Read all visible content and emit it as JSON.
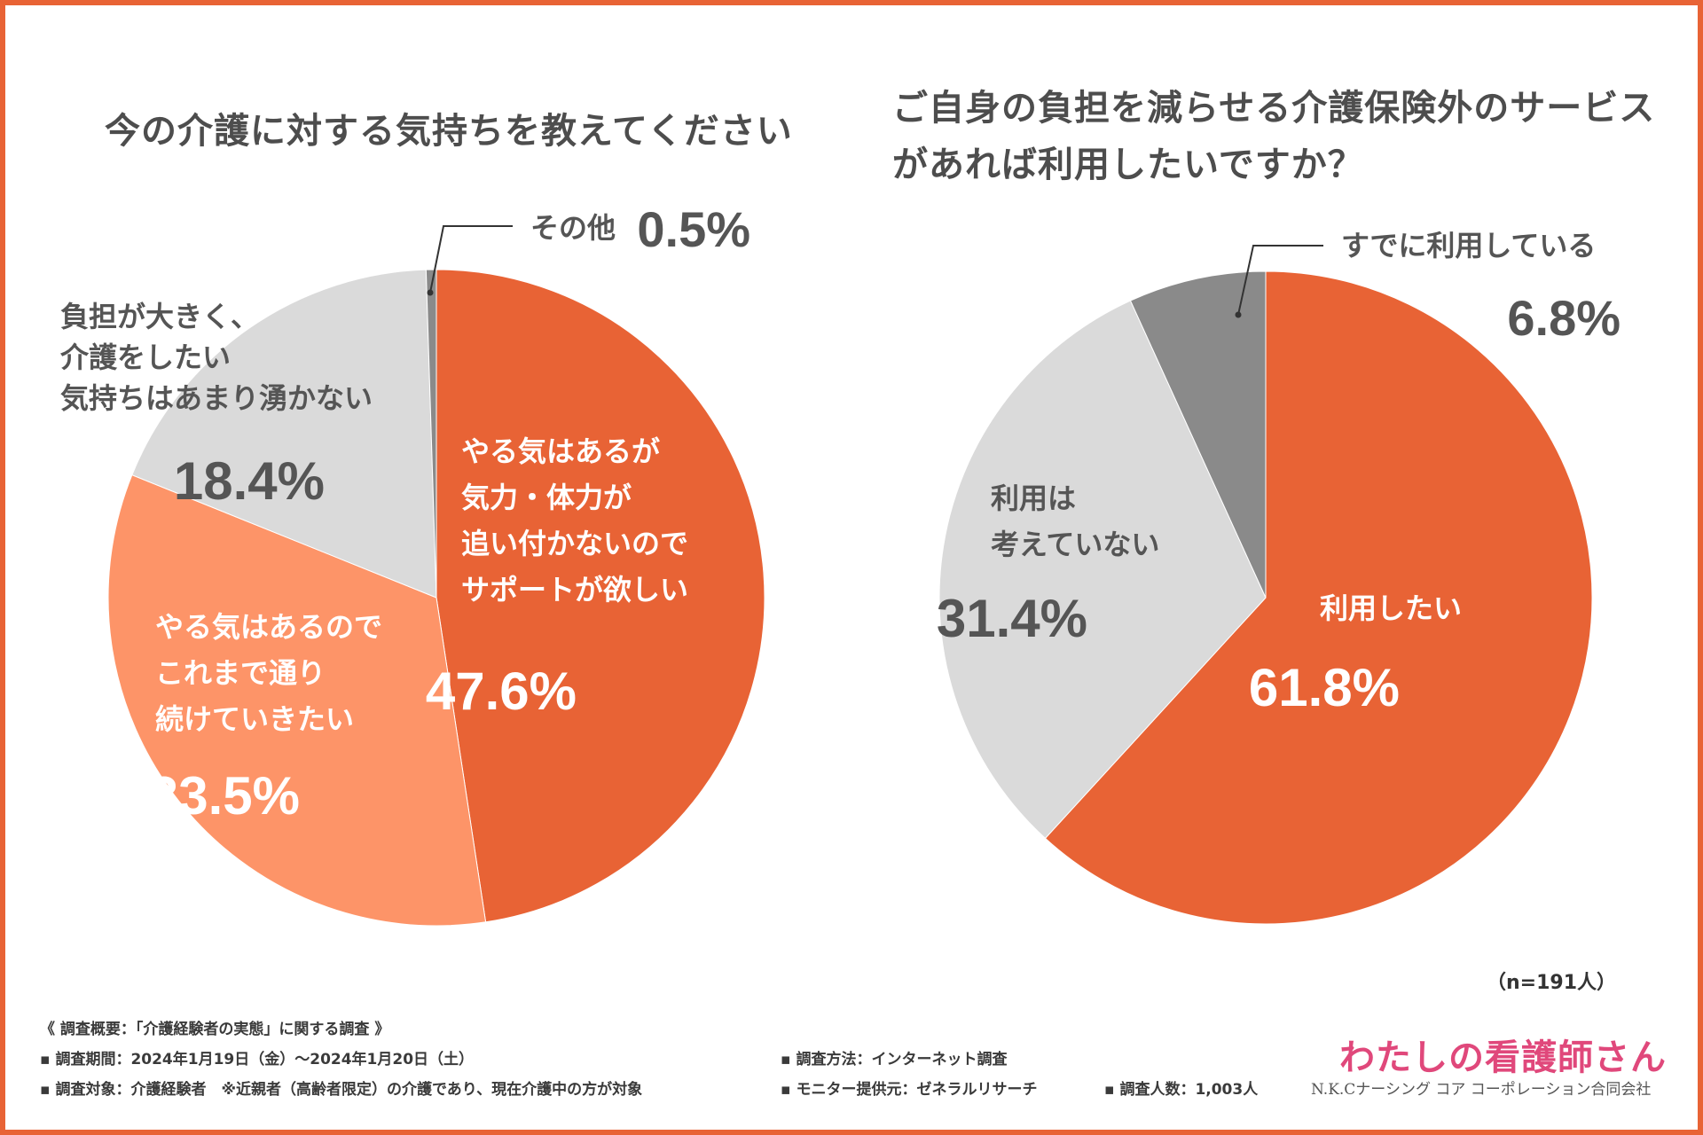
{
  "left_chart_title": [
    "今の介護に対する気持ちを教えてください"
  ],
  "right_chart_title": [
    "ご自身の負担を減らせる介護保険外のサービス",
    "があれば利用したいですか？"
  ],
  "colors": {
    "orange": "#e86335",
    "light_orange": "#fd9468",
    "light_gray": "#dadada",
    "dark_gray": "#8a8a8a",
    "text_gray": "#555555",
    "white": "#ffffff",
    "frame": "#e86335",
    "brand_pink": "#e0487b"
  },
  "chart_data": [
    {
      "type": "pie",
      "title": "今の介護に対する気持ちを教えてください",
      "start": "12 o'clock, clockwise",
      "slices": [
        {
          "label_lines": [
            "やる気はあるが",
            "気力・体力が",
            "追い付かないので",
            "サポートが欲しい"
          ],
          "value": 47.6,
          "value_label": "47.6%",
          "color": "#e86335",
          "label_color": "#ffffff"
        },
        {
          "label_lines": [
            "やる気はあるので",
            "これまで通り",
            "続けていきたい"
          ],
          "value": 33.5,
          "value_label": "33.5%",
          "color": "#fd9468",
          "label_color": "#ffffff"
        },
        {
          "label_lines": [
            "負担が大きく、",
            "介護をしたい",
            "気持ちはあまり湧かない"
          ],
          "value": 18.4,
          "value_label": "18.4%",
          "color": "#dadada",
          "label_color": "#555555"
        },
        {
          "label_lines": [
            "その他"
          ],
          "value": 0.5,
          "value_label": "0.5%",
          "color": "#8a8a8a",
          "label_color": "#555555",
          "callout": true
        }
      ]
    },
    {
      "type": "pie",
      "title": "ご自身の負担を減らせる介護保険外のサービスがあれば利用したいですか？",
      "start": "12 o'clock, clockwise",
      "slices": [
        {
          "label_lines": [
            "利用したい"
          ],
          "value": 61.8,
          "value_label": "61.8%",
          "color": "#e86335",
          "label_color": "#ffffff"
        },
        {
          "label_lines": [
            "利用は",
            "考えていない"
          ],
          "value": 31.4,
          "value_label": "31.4%",
          "color": "#dadada",
          "label_color": "#555555"
        },
        {
          "label_lines": [
            "すでに利用している"
          ],
          "value": 6.8,
          "value_label": "6.8%",
          "color": "#8a8a8a",
          "label_color": "#555555",
          "callout": true
        }
      ]
    }
  ],
  "sample_size": "（n=191人）",
  "footer": {
    "heading": "《 調査概要：「介護経験者の実態」に関する調査 》",
    "period": "▪ 調査期間：2024年1月19日（金）〜2024年1月20日（土）",
    "target": "▪ 調査対象：介護経験者　※近親者（高齢者限定）の介護であり、現在介護中の方が対象",
    "method": "▪ 調査方法：インターネット調査",
    "provider": "▪ モニター提供元：ゼネラルリサーチ",
    "count": "▪ 調査人数：1,003人"
  },
  "brand": {
    "logo_text": "わたしの看護師さん",
    "company": "N.K.Cナーシング コア コーポレーション合同会社"
  }
}
